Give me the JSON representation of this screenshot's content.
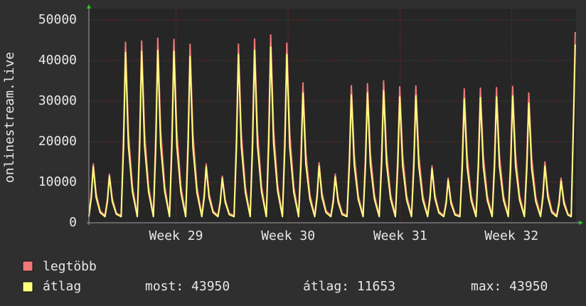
{
  "chart_data": {
    "type": "line",
    "ylabel": "onlinestream.live",
    "xlim": [
      0,
      30.2
    ],
    "ylim": [
      0,
      52800
    ],
    "yticks": [
      0,
      10000,
      20000,
      30000,
      40000,
      50000
    ],
    "xticks": [
      {
        "value": 5.4,
        "label": "Week 29"
      },
      {
        "value": 12.35,
        "label": "Week 30"
      },
      {
        "value": 19.3,
        "label": "Week 31"
      },
      {
        "value": 26.2,
        "label": "Week 32"
      }
    ],
    "grid": true,
    "x": [
      0,
      0.15,
      0.27,
      0.45,
      0.7,
      1,
      1.15,
      1.27,
      1.45,
      1.7,
      2,
      2.15,
      2.27,
      2.45,
      2.7,
      3,
      3.15,
      3.27,
      3.45,
      3.7,
      4,
      4.15,
      4.27,
      4.45,
      4.7,
      5,
      5.15,
      5.27,
      5.45,
      5.7,
      6,
      6.15,
      6.27,
      6.45,
      6.7,
      7,
      7.15,
      7.27,
      7.45,
      7.7,
      8,
      8.15,
      8.27,
      8.45,
      8.7,
      9,
      9.15,
      9.27,
      9.45,
      9.7,
      10,
      10.15,
      10.27,
      10.45,
      10.7,
      11,
      11.15,
      11.27,
      11.45,
      11.7,
      12,
      12.15,
      12.27,
      12.45,
      12.7,
      13,
      13.15,
      13.27,
      13.45,
      13.7,
      14,
      14.15,
      14.27,
      14.45,
      14.7,
      15,
      15.15,
      15.27,
      15.45,
      15.7,
      16,
      16.15,
      16.27,
      16.45,
      16.7,
      17,
      17.15,
      17.27,
      17.45,
      17.7,
      18,
      18.15,
      18.27,
      18.45,
      18.7,
      19,
      19.15,
      19.27,
      19.45,
      19.7,
      20,
      20.15,
      20.27,
      20.45,
      20.7,
      21,
      21.15,
      21.27,
      21.45,
      21.7,
      22,
      22.15,
      22.27,
      22.45,
      22.7,
      23,
      23.15,
      23.27,
      23.45,
      23.7,
      24,
      24.15,
      24.27,
      24.45,
      24.7,
      25,
      25.15,
      25.27,
      25.45,
      25.7,
      26,
      26.15,
      26.27,
      26.45,
      26.7,
      27,
      27.15,
      27.27,
      27.45,
      27.7,
      28,
      28.15,
      28.27,
      28.45,
      28.7,
      29,
      29.15,
      29.27,
      29.45,
      29.7,
      29.9,
      30.05,
      30.15
    ],
    "series": [
      {
        "name": "legtöbb",
        "color": "#f07878",
        "values": [
          1800,
          7250,
          14500,
          7250,
          2900,
          1800,
          6000,
          12000,
          6000,
          2400,
          1800,
          22250,
          44500,
          22250,
          8900,
          1800,
          22400,
          44800,
          22400,
          8960,
          1800,
          22750,
          45500,
          22750,
          9100,
          1800,
          22600,
          45200,
          22600,
          9040,
          1800,
          22000,
          44000,
          22000,
          8800,
          1800,
          7250,
          14500,
          7250,
          2900,
          1800,
          5750,
          11500,
          5750,
          2300,
          1800,
          22000,
          44000,
          22000,
          8800,
          1800,
          22650,
          45300,
          22650,
          9060,
          1800,
          23150,
          46300,
          23150,
          9260,
          1800,
          22150,
          44300,
          22150,
          8860,
          1800,
          17250,
          34500,
          17250,
          6900,
          1800,
          7400,
          14800,
          7400,
          2960,
          1800,
          6000,
          12000,
          6000,
          2400,
          1800,
          16900,
          33800,
          16900,
          6760,
          1800,
          17150,
          34300,
          17150,
          6860,
          1800,
          17500,
          35000,
          17500,
          7000,
          1800,
          16750,
          33500,
          16750,
          6700,
          1800,
          16850,
          33700,
          16850,
          6740,
          1800,
          7000,
          14000,
          7000,
          2800,
          1800,
          5500,
          11000,
          5500,
          2200,
          1800,
          16500,
          33000,
          16500,
          6600,
          1800,
          16600,
          33200,
          16600,
          6640,
          1800,
          16650,
          33300,
          16650,
          6660,
          1800,
          16800,
          33600,
          16800,
          6720,
          1800,
          16000,
          32000,
          16000,
          6400,
          1800,
          7500,
          15000,
          7500,
          3000,
          1800,
          5500,
          11000,
          5500,
          2200,
          1800,
          28000,
          47000
        ]
      },
      {
        "name": "átlag",
        "color": "#ffff80",
        "values": [
          1500,
          6200,
          13800,
          6200,
          2500,
          1500,
          5200,
          11500,
          5200,
          2100,
          1500,
          18900,
          42000,
          18900,
          7600,
          1500,
          19000,
          42200,
          19000,
          7600,
          1500,
          19100,
          42500,
          19100,
          7700,
          1500,
          19000,
          42300,
          19000,
          7600,
          1500,
          18500,
          41000,
          18500,
          7400,
          1500,
          6200,
          13800,
          6200,
          2500,
          1500,
          5000,
          11000,
          5000,
          2000,
          1500,
          18700,
          41500,
          18700,
          7500,
          1500,
          19100,
          42500,
          19100,
          7700,
          1500,
          19500,
          43300,
          19500,
          7800,
          1500,
          18700,
          41500,
          18700,
          7500,
          1500,
          14400,
          32000,
          14400,
          5800,
          1500,
          6300,
          14000,
          6300,
          2500,
          1500,
          5100,
          11300,
          5100,
          2000,
          1500,
          14200,
          31500,
          14200,
          5700,
          1500,
          14400,
          32000,
          14400,
          5800,
          1500,
          14600,
          32500,
          14600,
          5900,
          1500,
          14000,
          31000,
          14000,
          5600,
          1500,
          14100,
          31300,
          14100,
          5600,
          1500,
          6000,
          13300,
          6000,
          2400,
          1500,
          4700,
          10500,
          4700,
          1900,
          1500,
          13700,
          30500,
          13700,
          5500,
          1500,
          13900,
          30800,
          13900,
          5500,
          1500,
          14000,
          31000,
          14000,
          5600,
          1500,
          14000,
          31200,
          14000,
          5600,
          1500,
          13300,
          29500,
          13300,
          5300,
          1500,
          6300,
          14000,
          6300,
          2500,
          1500,
          4600,
          10300,
          4600,
          1900,
          1500,
          26000,
          43950
        ]
      }
    ],
    "stats": [
      "most: 43950",
      "átlag: 11653",
      "max: 43950"
    ]
  }
}
